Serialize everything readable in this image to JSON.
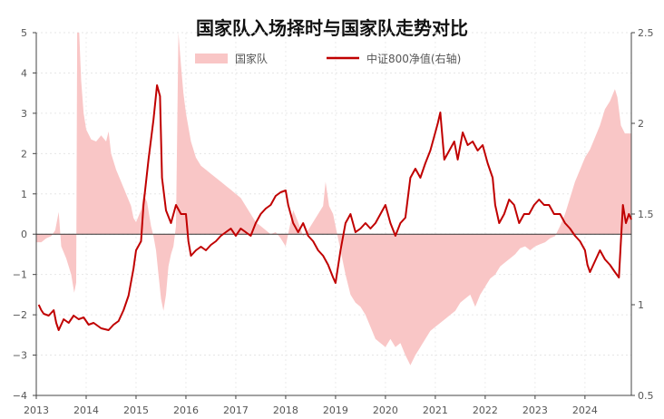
{
  "chart_data": {
    "type": "area+line",
    "title": "国家队入场择时与国家队走势对比",
    "legend": {
      "placement": "top-center"
    },
    "x_axis": {
      "ticks": [
        "2013",
        "2014",
        "2015",
        "2016",
        "2017",
        "2018",
        "2019",
        "2020",
        "2021",
        "2022",
        "2023",
        "2024"
      ],
      "range": [
        2013.0,
        2024.93
      ]
    },
    "y_left": {
      "ticks": [
        "5",
        "4",
        "3",
        "2",
        "1",
        "0",
        "−1",
        "−2",
        "−3",
        "−4"
      ],
      "range": [
        -4,
        5
      ]
    },
    "y_right": {
      "ticks": [
        "2.5",
        "2",
        "1.5",
        "1",
        "0.5"
      ],
      "range": [
        0.5,
        2.5
      ]
    },
    "grid": true,
    "series": [
      {
        "name": "国家队",
        "type": "area",
        "axis": "left",
        "color": "#f9c6c6",
        "points": [
          [
            2013.0,
            -0.2
          ],
          [
            2013.1,
            -0.2
          ],
          [
            2013.2,
            -0.1
          ],
          [
            2013.3,
            -0.05
          ],
          [
            2013.38,
            0.1
          ],
          [
            2013.45,
            0.55
          ],
          [
            2013.5,
            -0.3
          ],
          [
            2013.6,
            -0.6
          ],
          [
            2013.7,
            -1.0
          ],
          [
            2013.76,
            -1.45
          ],
          [
            2013.8,
            -1.2
          ],
          [
            2013.82,
            5.0
          ],
          [
            2013.86,
            5.0
          ],
          [
            2013.9,
            3.8
          ],
          [
            2013.95,
            3.0
          ],
          [
            2014.0,
            2.6
          ],
          [
            2014.1,
            2.35
          ],
          [
            2014.2,
            2.3
          ],
          [
            2014.3,
            2.45
          ],
          [
            2014.4,
            2.3
          ],
          [
            2014.45,
            2.55
          ],
          [
            2014.5,
            2.0
          ],
          [
            2014.6,
            1.6
          ],
          [
            2014.7,
            1.3
          ],
          [
            2014.8,
            1.0
          ],
          [
            2014.9,
            0.7
          ],
          [
            2014.95,
            0.4
          ],
          [
            2015.0,
            0.3
          ],
          [
            2015.1,
            0.6
          ],
          [
            2015.15,
            1.0
          ],
          [
            2015.22,
            0.8
          ],
          [
            2015.3,
            0.2
          ],
          [
            2015.35,
            -0.05
          ],
          [
            2015.4,
            -0.4
          ],
          [
            2015.45,
            -1.0
          ],
          [
            2015.5,
            -1.6
          ],
          [
            2015.55,
            -1.9
          ],
          [
            2015.6,
            -1.5
          ],
          [
            2015.65,
            -0.8
          ],
          [
            2015.7,
            -0.5
          ],
          [
            2015.75,
            -0.3
          ],
          [
            2015.8,
            0.2
          ],
          [
            2015.85,
            5.0
          ],
          [
            2015.9,
            4.2
          ],
          [
            2015.95,
            3.5
          ],
          [
            2016.0,
            3.0
          ],
          [
            2016.1,
            2.3
          ],
          [
            2016.2,
            1.9
          ],
          [
            2016.3,
            1.7
          ],
          [
            2016.4,
            1.6
          ],
          [
            2016.5,
            1.5
          ],
          [
            2016.6,
            1.4
          ],
          [
            2016.7,
            1.3
          ],
          [
            2016.8,
            1.2
          ],
          [
            2016.9,
            1.1
          ],
          [
            2017.0,
            1.0
          ],
          [
            2017.1,
            0.9
          ],
          [
            2017.2,
            0.7
          ],
          [
            2017.3,
            0.5
          ],
          [
            2017.4,
            0.3
          ],
          [
            2017.5,
            0.2
          ],
          [
            2017.6,
            0.1
          ],
          [
            2017.7,
            0.0
          ],
          [
            2017.8,
            0.05
          ],
          [
            2017.9,
            -0.1
          ],
          [
            2018.0,
            -0.3
          ],
          [
            2018.1,
            0.3
          ],
          [
            2018.15,
            0.6
          ],
          [
            2018.25,
            0.3
          ],
          [
            2018.35,
            -0.05
          ],
          [
            2018.45,
            0.1
          ],
          [
            2018.55,
            0.3
          ],
          [
            2018.65,
            0.5
          ],
          [
            2018.75,
            0.7
          ],
          [
            2018.8,
            1.3
          ],
          [
            2018.87,
            0.7
          ],
          [
            2018.95,
            0.5
          ],
          [
            2019.0,
            0.2
          ],
          [
            2019.1,
            -0.4
          ],
          [
            2019.2,
            -1.0
          ],
          [
            2019.3,
            -1.5
          ],
          [
            2019.4,
            -1.7
          ],
          [
            2019.5,
            -1.8
          ],
          [
            2019.6,
            -2.0
          ],
          [
            2019.7,
            -2.3
          ],
          [
            2019.8,
            -2.6
          ],
          [
            2019.9,
            -2.7
          ],
          [
            2020.0,
            -2.8
          ],
          [
            2020.1,
            -2.6
          ],
          [
            2020.2,
            -2.8
          ],
          [
            2020.3,
            -2.7
          ],
          [
            2020.4,
            -3.0
          ],
          [
            2020.5,
            -3.25
          ],
          [
            2020.6,
            -3.0
          ],
          [
            2020.7,
            -2.8
          ],
          [
            2020.8,
            -2.6
          ],
          [
            2020.9,
            -2.4
          ],
          [
            2021.0,
            -2.3
          ],
          [
            2021.1,
            -2.2
          ],
          [
            2021.2,
            -2.1
          ],
          [
            2021.3,
            -2.0
          ],
          [
            2021.4,
            -1.9
          ],
          [
            2021.5,
            -1.7
          ],
          [
            2021.6,
            -1.6
          ],
          [
            2021.7,
            -1.5
          ],
          [
            2021.8,
            -1.8
          ],
          [
            2021.9,
            -1.5
          ],
          [
            2022.0,
            -1.3
          ],
          [
            2022.1,
            -1.1
          ],
          [
            2022.2,
            -1.0
          ],
          [
            2022.3,
            -0.8
          ],
          [
            2022.4,
            -0.7
          ],
          [
            2022.5,
            -0.6
          ],
          [
            2022.6,
            -0.5
          ],
          [
            2022.7,
            -0.35
          ],
          [
            2022.8,
            -0.3
          ],
          [
            2022.9,
            -0.4
          ],
          [
            2023.0,
            -0.3
          ],
          [
            2023.1,
            -0.25
          ],
          [
            2023.2,
            -0.2
          ],
          [
            2023.3,
            -0.1
          ],
          [
            2023.4,
            -0.05
          ],
          [
            2023.5,
            0.2
          ],
          [
            2023.6,
            0.5
          ],
          [
            2023.7,
            0.9
          ],
          [
            2023.8,
            1.3
          ],
          [
            2023.9,
            1.6
          ],
          [
            2024.0,
            1.9
          ],
          [
            2024.1,
            2.1
          ],
          [
            2024.2,
            2.4
          ],
          [
            2024.3,
            2.7
          ],
          [
            2024.4,
            3.1
          ],
          [
            2024.5,
            3.3
          ],
          [
            2024.6,
            3.6
          ],
          [
            2024.65,
            3.4
          ],
          [
            2024.72,
            2.7
          ],
          [
            2024.8,
            2.5
          ],
          [
            2024.93,
            2.5
          ]
        ]
      },
      {
        "name": "中证800净值(右轴)",
        "type": "line",
        "axis": "right",
        "color": "#c00000",
        "points": [
          [
            2013.05,
            1.0
          ],
          [
            2013.1,
            0.97
          ],
          [
            2013.15,
            0.95
          ],
          [
            2013.25,
            0.94
          ],
          [
            2013.35,
            0.97
          ],
          [
            2013.4,
            0.9
          ],
          [
            2013.45,
            0.86
          ],
          [
            2013.55,
            0.92
          ],
          [
            2013.65,
            0.9
          ],
          [
            2013.75,
            0.94
          ],
          [
            2013.85,
            0.92
          ],
          [
            2013.95,
            0.93
          ],
          [
            2014.05,
            0.89
          ],
          [
            2014.15,
            0.9
          ],
          [
            2014.3,
            0.87
          ],
          [
            2014.45,
            0.86
          ],
          [
            2014.55,
            0.89
          ],
          [
            2014.65,
            0.91
          ],
          [
            2014.75,
            0.97
          ],
          [
            2014.85,
            1.05
          ],
          [
            2014.95,
            1.2
          ],
          [
            2015.0,
            1.3
          ],
          [
            2015.1,
            1.35
          ],
          [
            2015.15,
            1.55
          ],
          [
            2015.25,
            1.8
          ],
          [
            2015.35,
            2.02
          ],
          [
            2015.42,
            2.21
          ],
          [
            2015.48,
            2.15
          ],
          [
            2015.52,
            1.7
          ],
          [
            2015.6,
            1.52
          ],
          [
            2015.7,
            1.45
          ],
          [
            2015.8,
            1.55
          ],
          [
            2015.9,
            1.5
          ],
          [
            2016.0,
            1.5
          ],
          [
            2016.05,
            1.35
          ],
          [
            2016.1,
            1.27
          ],
          [
            2016.2,
            1.3
          ],
          [
            2016.3,
            1.32
          ],
          [
            2016.4,
            1.3
          ],
          [
            2016.5,
            1.33
          ],
          [
            2016.6,
            1.35
          ],
          [
            2016.7,
            1.38
          ],
          [
            2016.8,
            1.4
          ],
          [
            2016.9,
            1.42
          ],
          [
            2017.0,
            1.38
          ],
          [
            2017.1,
            1.42
          ],
          [
            2017.2,
            1.4
          ],
          [
            2017.3,
            1.38
          ],
          [
            2017.4,
            1.45
          ],
          [
            2017.5,
            1.5
          ],
          [
            2017.6,
            1.53
          ],
          [
            2017.7,
            1.55
          ],
          [
            2017.8,
            1.6
          ],
          [
            2017.9,
            1.62
          ],
          [
            2018.0,
            1.63
          ],
          [
            2018.05,
            1.55
          ],
          [
            2018.15,
            1.45
          ],
          [
            2018.25,
            1.4
          ],
          [
            2018.35,
            1.45
          ],
          [
            2018.45,
            1.38
          ],
          [
            2018.55,
            1.35
          ],
          [
            2018.65,
            1.3
          ],
          [
            2018.75,
            1.27
          ],
          [
            2018.85,
            1.22
          ],
          [
            2018.95,
            1.15
          ],
          [
            2019.0,
            1.12
          ],
          [
            2019.1,
            1.3
          ],
          [
            2019.2,
            1.45
          ],
          [
            2019.3,
            1.5
          ],
          [
            2019.4,
            1.4
          ],
          [
            2019.5,
            1.42
          ],
          [
            2019.6,
            1.45
          ],
          [
            2019.7,
            1.42
          ],
          [
            2019.8,
            1.45
          ],
          [
            2019.9,
            1.5
          ],
          [
            2020.0,
            1.55
          ],
          [
            2020.1,
            1.45
          ],
          [
            2020.2,
            1.38
          ],
          [
            2020.3,
            1.45
          ],
          [
            2020.4,
            1.48
          ],
          [
            2020.5,
            1.7
          ],
          [
            2020.6,
            1.75
          ],
          [
            2020.7,
            1.7
          ],
          [
            2020.8,
            1.78
          ],
          [
            2020.9,
            1.85
          ],
          [
            2021.0,
            1.95
          ],
          [
            2021.05,
            2.0
          ],
          [
            2021.1,
            2.06
          ],
          [
            2021.18,
            1.8
          ],
          [
            2021.28,
            1.85
          ],
          [
            2021.38,
            1.9
          ],
          [
            2021.45,
            1.8
          ],
          [
            2021.55,
            1.95
          ],
          [
            2021.65,
            1.88
          ],
          [
            2021.75,
            1.9
          ],
          [
            2021.85,
            1.85
          ],
          [
            2021.95,
            1.88
          ],
          [
            2022.05,
            1.78
          ],
          [
            2022.15,
            1.7
          ],
          [
            2022.2,
            1.55
          ],
          [
            2022.28,
            1.45
          ],
          [
            2022.38,
            1.5
          ],
          [
            2022.48,
            1.58
          ],
          [
            2022.58,
            1.55
          ],
          [
            2022.68,
            1.45
          ],
          [
            2022.78,
            1.5
          ],
          [
            2022.88,
            1.5
          ],
          [
            2022.98,
            1.55
          ],
          [
            2023.08,
            1.58
          ],
          [
            2023.18,
            1.55
          ],
          [
            2023.28,
            1.55
          ],
          [
            2023.38,
            1.5
          ],
          [
            2023.5,
            1.5
          ],
          [
            2023.6,
            1.45
          ],
          [
            2023.7,
            1.42
          ],
          [
            2023.8,
            1.38
          ],
          [
            2023.9,
            1.35
          ],
          [
            2024.0,
            1.3
          ],
          [
            2024.05,
            1.22
          ],
          [
            2024.1,
            1.18
          ],
          [
            2024.2,
            1.24
          ],
          [
            2024.3,
            1.3
          ],
          [
            2024.4,
            1.25
          ],
          [
            2024.5,
            1.22
          ],
          [
            2024.6,
            1.18
          ],
          [
            2024.68,
            1.15
          ],
          [
            2024.72,
            1.35
          ],
          [
            2024.76,
            1.55
          ],
          [
            2024.82,
            1.45
          ],
          [
            2024.88,
            1.5
          ],
          [
            2024.93,
            1.47
          ]
        ]
      }
    ]
  }
}
